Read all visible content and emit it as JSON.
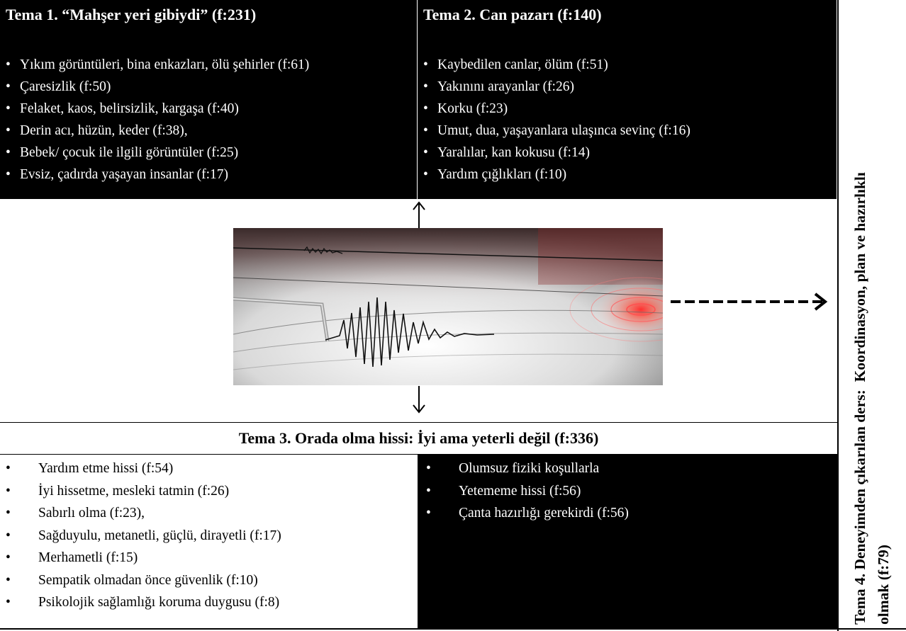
{
  "theme1": {
    "title": "Tema 1. “Mahşer yeri gibiydi” (f:231)",
    "items": [
      "Yıkım görüntüleri, bina enkazları, ölü şehirler (f:61)",
      "Çaresizlik (f:50)",
      "Felaket, kaos, belirsizlik, kargaşa (f:40)",
      "Derin acı, hüzün, keder (f:38),",
      "Bebek/ çocuk ile ilgili görüntüler (f:25)",
      "Evsiz, çadırda yaşayan insanlar (f:17)"
    ]
  },
  "theme2": {
    "title": "Tema 2. Can pazarı (f:140)",
    "items": [
      "Kaybedilen canlar, ölüm (f:51)",
      "Yakınını arayanlar (f:26)",
      "Korku (f:23)",
      "Umut, dua, yaşayanlara ulaşınca sevinç (f:16)",
      "Yaralılar, kan kokusu (f:14)",
      "Yardım çığlıkları (f:10)"
    ]
  },
  "theme3": {
    "title": "Tema 3. Orada olma hissi: İyi ama yeterli değil (f:336)",
    "left_items": [
      "Yardım etme hissi (f:54)",
      "İyi hissetme, mesleki tatmin (f:26)",
      "Sabırlı olma (f:23),",
      "Sağduyulu, metanetli, güçlü, dirayetli (f:17)",
      "Merhametli (f:15)",
      "Sempatik olmadan önce güvenlik (f:10)",
      "Psikolojik sağlamlığı koruma duygusu (f:8)"
    ],
    "right_items": [
      "Olumsuz fiziki koşullarla",
      "Yetememe hissi (f:56)",
      "Çanta hazırlığı gerekirdi (f:56)"
    ]
  },
  "theme4": {
    "line1": "Tema 4. Deneyimden çıkarılan ders:  Koordinasyon, plan ve hazırlıklı",
    "line2": "olmak (f:79)"
  }
}
